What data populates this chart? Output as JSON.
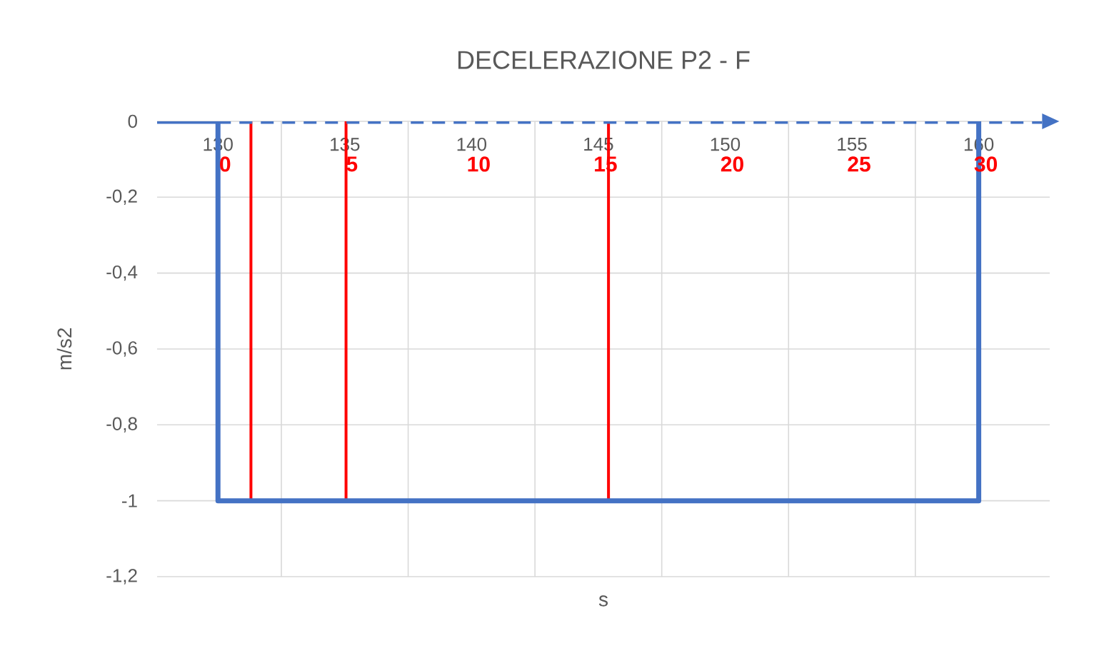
{
  "chart_data": {
    "type": "line",
    "title": "DECELERAZIONE P2 - F",
    "xlabel": "s",
    "ylabel": "m/s2",
    "xlim": [
      127.6,
      162.8
    ],
    "ylim": [
      -1.2,
      0
    ],
    "xticks": [
      130,
      {
        "value": 132.5,
        "label": null
      },
      135,
      {
        "value": 137.5,
        "label": null
      },
      140,
      {
        "value": 142.5,
        "label": null
      },
      145,
      {
        "value": 147.5,
        "label": null
      },
      150,
      {
        "value": 152.5,
        "label": null
      },
      155,
      {
        "value": 157.5,
        "label": null
      },
      160
    ],
    "yticks": [
      {
        "value": -1.2,
        "label": "-1,2"
      },
      -1,
      {
        "value": -0.8,
        "label": "-0,8"
      },
      {
        "value": -0.6,
        "label": "-0,6"
      },
      {
        "value": -0.4,
        "label": "-0,4"
      },
      {
        "value": -0.2,
        "label": "-0,2"
      },
      0
    ],
    "grid": true,
    "tick_labels": "xy",
    "series": [
      {
        "color": "#4472c4",
        "x": [
          127.6,
          130,
          130,
          160,
          160
        ],
        "values": [
          0,
          0,
          -1,
          -1,
          0
        ],
        "line_style": "solid"
      },
      {
        "color": "#4472c4",
        "x": [
          130,
          162.5
        ],
        "values": [
          0,
          0
        ],
        "line_style": "dashed"
      }
    ],
    "ref_lines": [
      {
        "axis": "x",
        "value": 131.3,
        "color": "#ff0000"
      },
      {
        "axis": "x",
        "value": 135.05,
        "color": "#ff0000"
      },
      {
        "axis": "x",
        "value": 145.4,
        "color": "#ff0000"
      }
    ],
    "annotations": [
      "0",
      "5",
      "10",
      "15",
      "20",
      "25",
      "30"
    ]
  }
}
